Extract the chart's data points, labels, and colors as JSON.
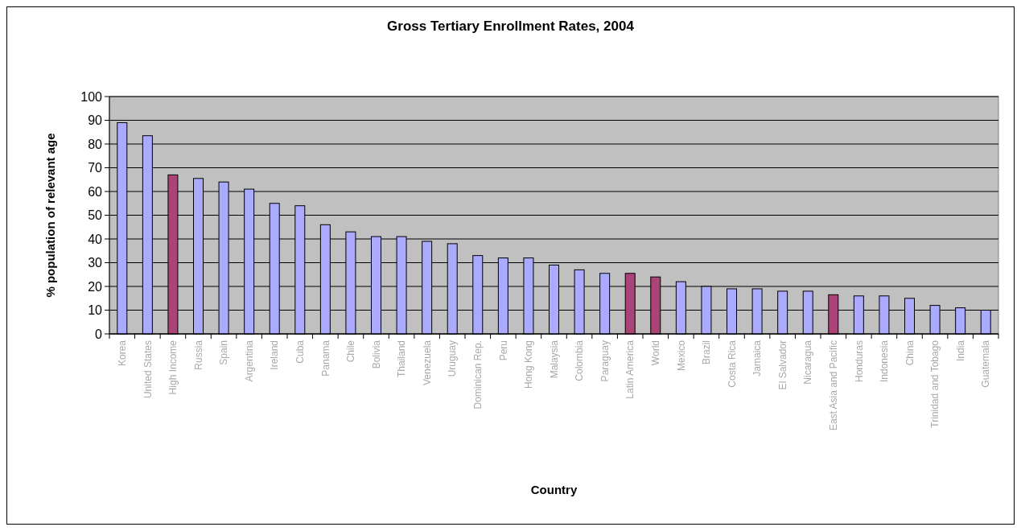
{
  "chart_data": {
    "type": "bar",
    "title": "Gross Tertiary Enrollment Rates, 2004",
    "xlabel": "Country",
    "ylabel": "% population of relevant age",
    "categories": [
      "Korea",
      "United States",
      "High Income",
      "Russia",
      "Spain",
      "Argentina",
      "Ireland",
      "Cuba",
      "Panama",
      "Chile",
      "Bolivia",
      "Thailand",
      "Venezuela",
      "Uruguay",
      "Dominican Rep.",
      "Peru",
      "Hong Kong",
      "Malaysia",
      "Colombia",
      "Paraguay",
      "Latin America",
      "World",
      "Mexico",
      "Brazil",
      "Costa Rica",
      "Jamaica",
      "El Salvador",
      "Nicaragua",
      "East Asia and Pacific",
      "Honduras",
      "Indonesia",
      "China",
      "Trinidad and Tobago",
      "India",
      "Guatemala"
    ],
    "values": [
      89,
      83.5,
      67,
      65.5,
      64,
      61,
      55,
      54,
      46,
      43,
      41,
      41,
      39,
      38,
      33,
      32,
      32,
      29,
      27,
      25.5,
      25.5,
      24,
      22,
      20,
      19,
      19,
      18,
      18,
      16.5,
      16,
      16,
      15,
      12,
      11,
      10
    ],
    "colors": [
      "#aaaaff",
      "#aaaaff",
      "#aa4477",
      "#aaaaff",
      "#aaaaff",
      "#aaaaff",
      "#aaaaff",
      "#aaaaff",
      "#aaaaff",
      "#aaaaff",
      "#aaaaff",
      "#aaaaff",
      "#aaaaff",
      "#aaaaff",
      "#aaaaff",
      "#aaaaff",
      "#aaaaff",
      "#aaaaff",
      "#aaaaff",
      "#aaaaff",
      "#aa4477",
      "#aa4477",
      "#aaaaff",
      "#aaaaff",
      "#aaaaff",
      "#aaaaff",
      "#aaaaff",
      "#aaaaff",
      "#aa4477",
      "#aaaaff",
      "#aaaaff",
      "#aaaaff",
      "#aaaaff",
      "#aaaaff",
      "#aaaaff"
    ],
    "ylim": [
      0,
      100
    ],
    "yticks": [
      0,
      10,
      20,
      30,
      40,
      50,
      60,
      70,
      80,
      90,
      100
    ],
    "grid": "y"
  }
}
